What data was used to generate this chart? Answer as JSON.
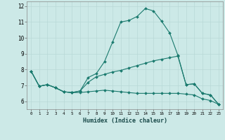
{
  "xlabel": "Humidex (Indice chaleur)",
  "xlim": [
    -0.5,
    23.5
  ],
  "ylim": [
    5.5,
    12.3
  ],
  "xticks": [
    0,
    1,
    2,
    3,
    4,
    5,
    6,
    7,
    8,
    9,
    10,
    11,
    12,
    13,
    14,
    15,
    16,
    17,
    18,
    19,
    20,
    21,
    22,
    23
  ],
  "yticks": [
    6,
    7,
    8,
    9,
    10,
    11,
    12
  ],
  "bg_color": "#cce9e7",
  "line_color": "#1a7a6e",
  "grid_color": "#b8d8d6",
  "line1_x": [
    0,
    1,
    2,
    3,
    4,
    5,
    6,
    7,
    8,
    9,
    10,
    11,
    12,
    13,
    14,
    15,
    16,
    17,
    18,
    19,
    20,
    21,
    22,
    23
  ],
  "line1_y": [
    7.9,
    6.95,
    7.05,
    6.85,
    6.6,
    6.55,
    6.65,
    7.5,
    7.75,
    8.5,
    9.75,
    11.0,
    11.1,
    11.35,
    11.85,
    11.7,
    11.05,
    10.3,
    8.9,
    7.05,
    7.1,
    6.5,
    6.4,
    5.8
  ],
  "line2_x": [
    0,
    1,
    2,
    3,
    4,
    5,
    6,
    7,
    8,
    9,
    10,
    11,
    12,
    13,
    14,
    15,
    16,
    17,
    18,
    19,
    20,
    21,
    22,
    23
  ],
  "line2_y": [
    7.9,
    6.95,
    7.05,
    6.85,
    6.6,
    6.55,
    6.65,
    7.2,
    7.55,
    7.7,
    7.85,
    7.95,
    8.1,
    8.25,
    8.4,
    8.55,
    8.65,
    8.75,
    8.85,
    7.05,
    7.1,
    6.5,
    6.4,
    5.8
  ],
  "line3_x": [
    0,
    1,
    2,
    3,
    4,
    5,
    6,
    7,
    8,
    9,
    10,
    11,
    12,
    13,
    14,
    15,
    16,
    17,
    18,
    19,
    20,
    21,
    22,
    23
  ],
  "line3_y": [
    7.9,
    6.95,
    7.05,
    6.85,
    6.6,
    6.55,
    6.55,
    6.6,
    6.65,
    6.7,
    6.65,
    6.6,
    6.55,
    6.5,
    6.5,
    6.5,
    6.5,
    6.5,
    6.5,
    6.45,
    6.4,
    6.15,
    6.05,
    5.8
  ]
}
